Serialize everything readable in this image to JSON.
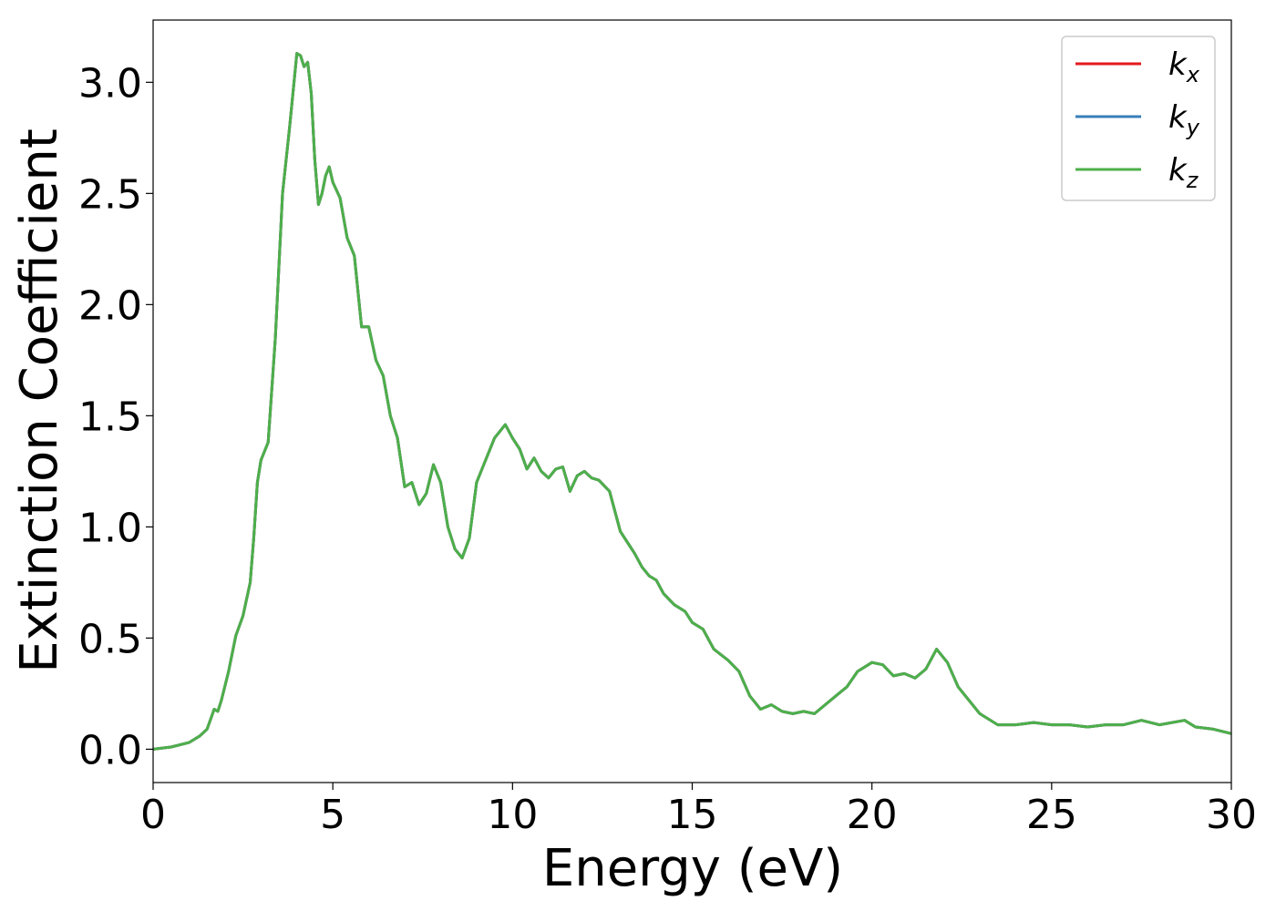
{
  "chart_data": {
    "type": "line",
    "title": "",
    "xlabel": "Energy (eV)",
    "ylabel": "Extinction Coefficient",
    "xlim": [
      0,
      30
    ],
    "ylim": [
      -0.15,
      3.28
    ],
    "xticks": [
      0,
      5,
      10,
      15,
      20,
      25,
      30
    ],
    "xtick_labels": [
      "0",
      "5",
      "10",
      "15",
      "20",
      "25",
      "30"
    ],
    "yticks": [
      0.0,
      0.5,
      1.0,
      1.5,
      2.0,
      2.5,
      3.0
    ],
    "ytick_labels": [
      "0.0",
      "0.5",
      "1.0",
      "1.5",
      "2.0",
      "2.5",
      "3.0"
    ],
    "grid": false,
    "legend_position": "top-right",
    "series": [
      {
        "name": "k_x",
        "label_main": "k",
        "label_sub": "x",
        "color": "#e41a1c"
      },
      {
        "name": "k_y",
        "label_main": "k",
        "label_sub": "y",
        "color": "#377eb8"
      },
      {
        "name": "k_z",
        "label_main": "k",
        "label_sub": "z",
        "color": "#4daf4a"
      }
    ],
    "x": [
      0,
      0.5,
      1.0,
      1.3,
      1.5,
      1.7,
      1.8,
      1.9,
      2.1,
      2.3,
      2.5,
      2.7,
      2.8,
      2.9,
      3.0,
      3.2,
      3.4,
      3.6,
      3.8,
      4.0,
      4.1,
      4.2,
      4.3,
      4.4,
      4.5,
      4.6,
      4.7,
      4.8,
      4.9,
      5.0,
      5.2,
      5.4,
      5.6,
      5.8,
      6.0,
      6.2,
      6.4,
      6.6,
      6.8,
      7.0,
      7.2,
      7.4,
      7.6,
      7.8,
      8.0,
      8.2,
      8.4,
      8.6,
      8.8,
      9.0,
      9.2,
      9.5,
      9.8,
      10.0,
      10.2,
      10.4,
      10.6,
      10.8,
      11.0,
      11.2,
      11.4,
      11.6,
      11.8,
      12.0,
      12.2,
      12.4,
      12.7,
      13.0,
      13.2,
      13.4,
      13.6,
      13.8,
      14.0,
      14.2,
      14.5,
      14.8,
      15.0,
      15.3,
      15.6,
      16.0,
      16.3,
      16.6,
      16.9,
      17.2,
      17.5,
      17.8,
      18.1,
      18.4,
      18.7,
      19.0,
      19.3,
      19.6,
      20.0,
      20.3,
      20.6,
      20.9,
      21.2,
      21.5,
      21.8,
      22.1,
      22.4,
      22.7,
      23.0,
      23.5,
      24.0,
      24.5,
      25.0,
      25.5,
      26.0,
      26.5,
      27.0,
      27.5,
      28.0,
      28.7,
      29.0,
      29.5,
      30.0
    ],
    "values": [
      0.0,
      0.01,
      0.03,
      0.06,
      0.09,
      0.18,
      0.17,
      0.22,
      0.35,
      0.51,
      0.6,
      0.75,
      0.95,
      1.2,
      1.3,
      1.38,
      1.85,
      2.5,
      2.8,
      3.13,
      3.12,
      3.07,
      3.09,
      2.95,
      2.65,
      2.45,
      2.5,
      2.58,
      2.62,
      2.55,
      2.48,
      2.3,
      2.22,
      1.9,
      1.9,
      1.75,
      1.68,
      1.5,
      1.4,
      1.18,
      1.2,
      1.1,
      1.15,
      1.28,
      1.2,
      1.0,
      0.9,
      0.86,
      0.95,
      1.2,
      1.28,
      1.4,
      1.46,
      1.4,
      1.35,
      1.26,
      1.31,
      1.25,
      1.22,
      1.26,
      1.27,
      1.16,
      1.23,
      1.25,
      1.22,
      1.21,
      1.16,
      0.98,
      0.93,
      0.88,
      0.82,
      0.78,
      0.76,
      0.7,
      0.65,
      0.62,
      0.57,
      0.54,
      0.45,
      0.4,
      0.35,
      0.24,
      0.18,
      0.2,
      0.17,
      0.16,
      0.17,
      0.16,
      0.2,
      0.24,
      0.28,
      0.35,
      0.39,
      0.38,
      0.33,
      0.34,
      0.32,
      0.36,
      0.45,
      0.39,
      0.28,
      0.22,
      0.16,
      0.11,
      0.11,
      0.12,
      0.11,
      0.11,
      0.1,
      0.11,
      0.11,
      0.13,
      0.11,
      0.13,
      0.1,
      0.09,
      0.07
    ]
  }
}
